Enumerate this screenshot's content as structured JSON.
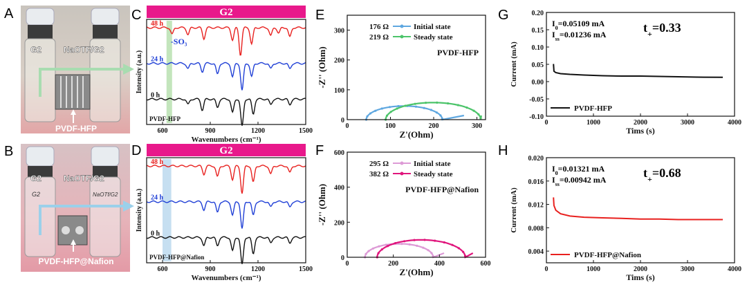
{
  "panel_letters": {
    "A": "A",
    "B": "B",
    "C": "C",
    "D": "D",
    "E": "E",
    "F": "F",
    "G": "G",
    "H": "H"
  },
  "photos": {
    "A": {
      "vial_left": "G2",
      "vial_right": "NaOTF/G2",
      "membrane": "PVDF-HFP"
    },
    "B": {
      "vial_left": "G2",
      "vial_right": "NaOTF/G2",
      "membrane": "PVDF-HFP@Nafion",
      "handwritten_left": "G2",
      "handwritten_right": "NaOTf/G2"
    }
  },
  "colors": {
    "banner": "#e8198b",
    "red": "#e8201e",
    "blue": "#1f3fd6",
    "black": "#111111",
    "light_blue": "#5ea7e0",
    "green": "#4cc46a",
    "pink": "#dd9ad6",
    "magenta": "#e0157c",
    "green_band": "#b9e0b0",
    "blue_band": "#bcd9ee"
  },
  "chart_data": [
    {
      "id": "C",
      "type": "line",
      "title": "G2",
      "xlabel": "Wavenumbers (cm⁻¹)",
      "ylabel": "Intensity (a.u.)",
      "xlim": [
        500,
        1500
      ],
      "xticks": [
        "600",
        "900",
        "1200",
        "1500"
      ],
      "annotation": "-SO₃",
      "band": [
        625,
        660
      ],
      "corner_label": "PVDF-HFP",
      "series": [
        {
          "name": "48 h",
          "color": "red",
          "peaks": [
            [
              660,
              0.25
            ],
            [
              760,
              0.25
            ],
            [
              860,
              0.4
            ],
            [
              1040,
              0.45
            ],
            [
              1090,
              1.0
            ],
            [
              1160,
              0.6
            ],
            [
              1280,
              0.3
            ],
            [
              1330,
              0.2
            ],
            [
              1400,
              0.35
            ]
          ]
        },
        {
          "name": "24 h",
          "color": "blue",
          "peaks": [
            [
              760,
              0.2
            ],
            [
              850,
              0.3
            ],
            [
              945,
              0.4
            ],
            [
              1040,
              0.5
            ],
            [
              1100,
              1.0
            ],
            [
              1160,
              0.5
            ],
            [
              1280,
              0.2
            ],
            [
              1400,
              0.2
            ]
          ]
        },
        {
          "name": "0 h",
          "color": "black",
          "peaks": [
            [
              760,
              0.2
            ],
            [
              850,
              0.4
            ],
            [
              945,
              0.3
            ],
            [
              1040,
              0.5
            ],
            [
              1100,
              1.0
            ],
            [
              1170,
              0.55
            ],
            [
              1280,
              0.2
            ],
            [
              1400,
              0.2
            ]
          ]
        }
      ]
    },
    {
      "id": "D",
      "type": "line",
      "title": "G2",
      "xlabel": "Wavenumbers (cm⁻¹)",
      "ylabel": "Intensity (a.u.)",
      "xlim": [
        500,
        1500
      ],
      "xticks": [
        "600",
        "900",
        "1200",
        "1500"
      ],
      "band": [
        600,
        655
      ],
      "corner_label": "PVDF-HFP@Nafion",
      "series": [
        {
          "name": "48 h",
          "color": "red",
          "peaks": [
            [
              860,
              0.3
            ],
            [
              945,
              0.4
            ],
            [
              1040,
              0.5
            ],
            [
              1100,
              1.0
            ],
            [
              1170,
              0.6
            ],
            [
              1280,
              0.3
            ],
            [
              1400,
              0.25
            ]
          ]
        },
        {
          "name": "24 h",
          "color": "blue",
          "peaks": [
            [
              860,
              0.3
            ],
            [
              945,
              0.4
            ],
            [
              1040,
              0.5
            ],
            [
              1100,
              1.0
            ],
            [
              1170,
              0.5
            ],
            [
              1280,
              0.2
            ],
            [
              1400,
              0.2
            ]
          ]
        },
        {
          "name": "0 h",
          "color": "black",
          "peaks": [
            [
              860,
              0.3
            ],
            [
              945,
              0.3
            ],
            [
              1040,
              0.5
            ],
            [
              1100,
              1.0
            ],
            [
              1170,
              0.6
            ],
            [
              1280,
              0.2
            ],
            [
              1400,
              0.2
            ]
          ]
        }
      ]
    },
    {
      "id": "E",
      "type": "scatter",
      "xlabel": "Z'(Ohm)",
      "ylabel": "-Z'' (Ohm)",
      "xlim": [
        0,
        320
      ],
      "ylim": [
        0,
        350
      ],
      "xticks": [
        0,
        100,
        200,
        300
      ],
      "yticks": [
        0,
        100,
        200,
        300
      ],
      "inset_label": "PVDF-HFP",
      "series": [
        {
          "name": "Initial state",
          "resistance": "176 Ω",
          "color": "light_blue",
          "center": 132,
          "radius": 88,
          "tail_x": 270
        },
        {
          "name": "Steady state",
          "resistance": "219 Ω",
          "color": "green",
          "center": 199,
          "radius": 110,
          "tail_x": 310
        }
      ]
    },
    {
      "id": "F",
      "type": "scatter",
      "xlabel": "Z'(Ohm)",
      "ylabel": "-Z'' (Ohm)",
      "xlim": [
        0,
        600
      ],
      "ylim": [
        0,
        600
      ],
      "xticks": [
        0,
        200,
        400,
        600
      ],
      "yticks": [
        0,
        200,
        400,
        600
      ],
      "inset_label": "PVDF-HFP@Nafion",
      "series": [
        {
          "name": "Initial state",
          "resistance": "295 Ω",
          "color": "pink",
          "center": 225,
          "radius": 148,
          "tail_x": 420
        },
        {
          "name": "Steady state",
          "resistance": "382 Ω",
          "color": "magenta",
          "center": 321,
          "radius": 191,
          "tail_x": 545
        }
      ]
    },
    {
      "id": "G",
      "type": "line",
      "xlabel": "Tims (s)",
      "ylabel": "Current (mA)",
      "xlim": [
        0,
        4000
      ],
      "ylim": [
        -0.1,
        0.2
      ],
      "xticks": [
        0,
        1000,
        2000,
        3000,
        4000
      ],
      "yticks": [
        "0.20",
        "0.15",
        "0.10",
        "0.05",
        "0.00",
        "-0.05",
        "-0.10"
      ],
      "ytick_values": [
        0.2,
        0.15,
        0.1,
        0.05,
        0.0,
        -0.05,
        -0.1
      ],
      "I0": "0.05109 mA",
      "Iss": "0.01236 mA",
      "t_plus": "0.33",
      "series": [
        {
          "name": "PVDF-HFP",
          "color": "black",
          "x": [
            150,
            160,
            200,
            300,
            500,
            800,
            1200,
            1600,
            2000,
            2400,
            2800,
            3200,
            3750
          ],
          "y": [
            0.051,
            0.03,
            0.026,
            0.023,
            0.021,
            0.019,
            0.017,
            0.016,
            0.016,
            0.015,
            0.014,
            0.013,
            0.0124
          ]
        }
      ]
    },
    {
      "id": "H",
      "type": "line",
      "xlabel": "Tims (s)",
      "ylabel": "Current (mA)",
      "xlim": [
        0,
        4000
      ],
      "ylim": [
        0.002,
        0.02
      ],
      "xticks": [
        0,
        1000,
        2000,
        3000,
        4000
      ],
      "yticks": [
        "0.020",
        "0.016",
        "0.012",
        "0.008",
        "0.004"
      ],
      "ytick_values": [
        0.02,
        0.016,
        0.012,
        0.008,
        0.004
      ],
      "I0": "0.01321 mA",
      "Iss": "0.00942 mA",
      "t_plus": "0.68",
      "series": [
        {
          "name": "PVDF-HFP@Nafion",
          "color": "red",
          "x": [
            150,
            160,
            200,
            300,
            500,
            800,
            1200,
            1600,
            2000,
            2400,
            2800,
            3200,
            3750
          ],
          "y": [
            0.0132,
            0.0118,
            0.011,
            0.0104,
            0.01,
            0.0098,
            0.0097,
            0.0096,
            0.0095,
            0.0095,
            0.0094,
            0.0094,
            0.0094
          ]
        }
      ]
    }
  ]
}
